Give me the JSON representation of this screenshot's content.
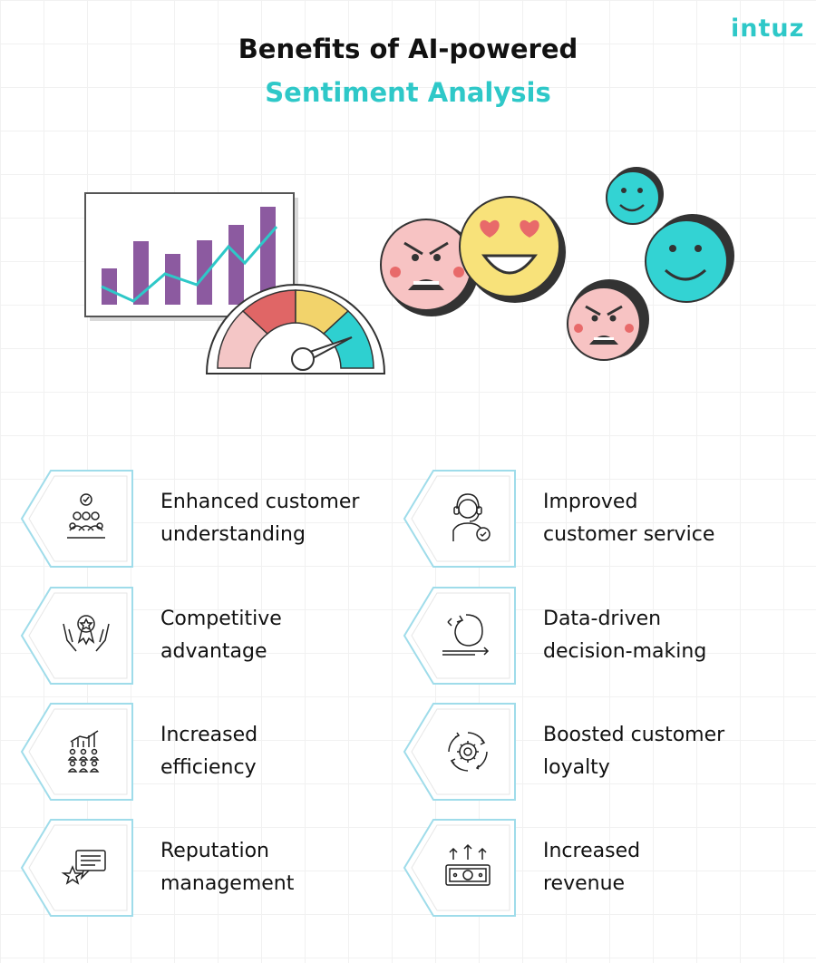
{
  "brand": {
    "logo_text": "intuz",
    "accent": "#2ec8c8"
  },
  "header": {
    "title_line1": "Benefits of AI-powered",
    "title_line2": "Sentiment Analysis"
  },
  "illustration": {
    "chart_bar_color": "#8c5aa0",
    "trend_line_color": "#2ec8c8",
    "gauge_colors": [
      "#f4c6c6",
      "#e06666",
      "#f2d36b",
      "#2ed0d0"
    ],
    "face_angry_color": "#f7c3c3",
    "face_love_color": "#f8e27a",
    "face_happy_color": "#33d3d3"
  },
  "benefits": [
    {
      "label_line1": "Enhanced customer",
      "label_line2": "understanding",
      "icon": "people-check-icon"
    },
    {
      "label_line1": "Improved",
      "label_line2": "customer service",
      "icon": "support-agent-icon"
    },
    {
      "label_line1": "Competitive",
      "label_line2": "advantage",
      "icon": "award-hands-icon"
    },
    {
      "label_line1": "Data-driven",
      "label_line2": "decision-making",
      "icon": "decision-loop-icon"
    },
    {
      "label_line1": "Increased",
      "label_line2": "efficiency",
      "icon": "team-growth-icon"
    },
    {
      "label_line1": "Boosted customer",
      "label_line2": "loyalty",
      "icon": "gear-cycle-icon"
    },
    {
      "label_line1": "Reputation",
      "label_line2": "management",
      "icon": "star-review-icon"
    },
    {
      "label_line1": "Increased",
      "label_line2": "revenue",
      "icon": "money-up-icon"
    }
  ]
}
